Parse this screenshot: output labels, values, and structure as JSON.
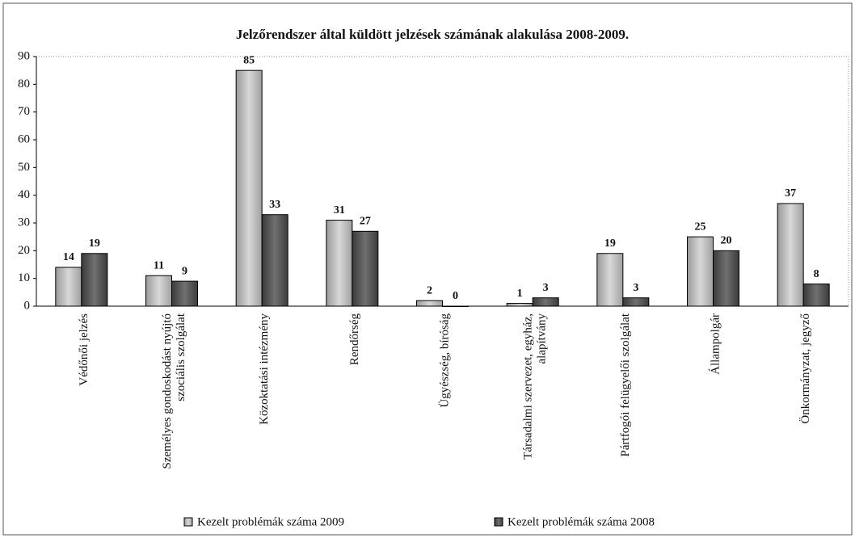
{
  "chart_data": {
    "type": "bar",
    "title": "Jelzőrendszer által küldött jelzések számának alakulása 2008-2009.",
    "categories": [
      "Védőnői jelzés",
      "Személyes gondoskodást nyújtó szociális szolgálat",
      "Közoktatási intézmény",
      "Rendőrség",
      "Ügyészség, bíróság",
      "Társadalmi szervezet, egyház, alapítvány",
      "Pártfogói felügyelői szolgálat",
      "Állampolgár",
      "Önkormányzat, jegyző"
    ],
    "series": [
      {
        "name": "Kezelt problémák száma 2009",
        "color": "url(#g1)",
        "values": [
          14,
          11,
          85,
          31,
          2,
          1,
          19,
          25,
          37
        ]
      },
      {
        "name": "Kezelt problémák száma 2008",
        "color": "url(#g2)",
        "values": [
          19,
          9,
          33,
          27,
          0,
          3,
          3,
          20,
          8
        ]
      }
    ],
    "ylim": [
      0,
      90
    ],
    "yticks": [
      0,
      10,
      20,
      30,
      40,
      50,
      60,
      70,
      80,
      90
    ],
    "grid": false,
    "legend": "bottom"
  }
}
